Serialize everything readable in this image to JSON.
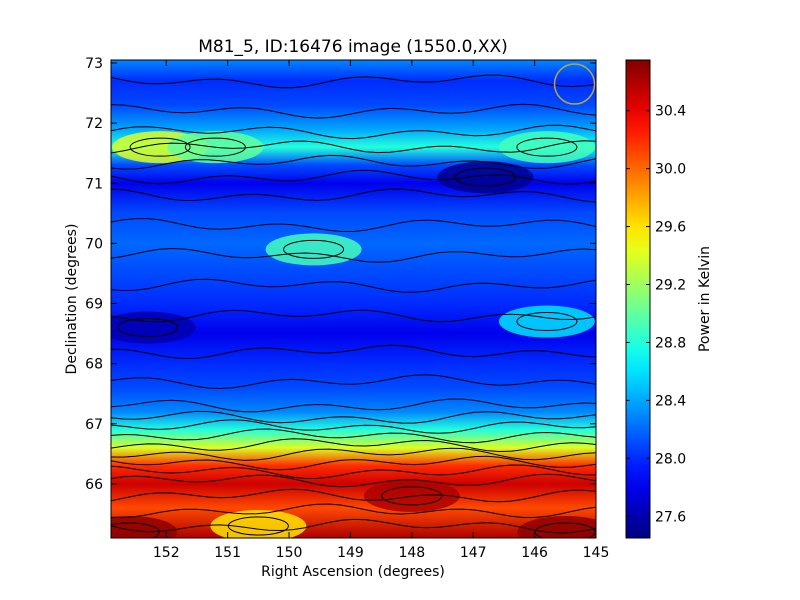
{
  "chart_data": {
    "type": "heatmap",
    "title": "M81_5, ID:16476 image (1550.0,XX)",
    "xlabel": "Right Ascension (degrees)",
    "ylabel": "Declination (degrees)",
    "colorbar_label": "Power in Kelvin",
    "xlim": [
      152.9,
      145.0
    ],
    "ylim": [
      65.1,
      73.05
    ],
    "x_ticks": [
      152,
      151,
      150,
      149,
      148,
      147,
      146,
      145
    ],
    "y_ticks": [
      66,
      67,
      68,
      69,
      70,
      71,
      72,
      73
    ],
    "colorbar_range": [
      27.45,
      30.75
    ],
    "colorbar_ticks": [
      "27.6",
      "28.0",
      "28.4",
      "28.8",
      "29.2",
      "29.6",
      "30.0",
      "30.4"
    ],
    "colormap": "jet",
    "contours": "black",
    "beam_marker": {
      "shape": "circle",
      "color": "#b5a642",
      "ra": 145.35,
      "dec": 72.65
    },
    "dec_profile": [
      {
        "dec": 65.1,
        "value": 30.6
      },
      {
        "dec": 65.6,
        "value": 30.1
      },
      {
        "dec": 66.0,
        "value": 30.5
      },
      {
        "dec": 66.3,
        "value": 30.2
      },
      {
        "dec": 66.6,
        "value": 29.4
      },
      {
        "dec": 66.9,
        "value": 28.8
      },
      {
        "dec": 67.2,
        "value": 28.3
      },
      {
        "dec": 67.6,
        "value": 28.1
      },
      {
        "dec": 68.0,
        "value": 28.0
      },
      {
        "dec": 68.5,
        "value": 27.8
      },
      {
        "dec": 69.0,
        "value": 28.0
      },
      {
        "dec": 69.5,
        "value": 28.1
      },
      {
        "dec": 70.0,
        "value": 28.2
      },
      {
        "dec": 70.5,
        "value": 28.1
      },
      {
        "dec": 71.0,
        "value": 27.8
      },
      {
        "dec": 71.3,
        "value": 28.1
      },
      {
        "dec": 71.6,
        "value": 28.8
      },
      {
        "dec": 71.9,
        "value": 28.4
      },
      {
        "dec": 72.3,
        "value": 28.1
      },
      {
        "dec": 72.7,
        "value": 28.0
      },
      {
        "dec": 73.05,
        "value": 28.3
      }
    ],
    "features": [
      {
        "ra": 152.1,
        "dec": 71.6,
        "value": 29.4
      },
      {
        "ra": 151.2,
        "dec": 71.6,
        "value": 29.0
      },
      {
        "ra": 145.8,
        "dec": 71.6,
        "value": 28.9
      },
      {
        "ra": 149.6,
        "dec": 69.9,
        "value": 28.9
      },
      {
        "ra": 145.8,
        "dec": 68.7,
        "value": 28.6
      },
      {
        "ra": 146.8,
        "dec": 71.1,
        "value": 27.5
      },
      {
        "ra": 152.3,
        "dec": 68.6,
        "value": 27.6
      },
      {
        "ra": 148.0,
        "dec": 65.8,
        "value": 30.6
      },
      {
        "ra": 150.5,
        "dec": 65.3,
        "value": 29.6
      },
      {
        "ra": 152.6,
        "dec": 65.2,
        "value": 30.7
      },
      {
        "ra": 145.5,
        "dec": 65.2,
        "value": 30.7
      }
    ]
  }
}
